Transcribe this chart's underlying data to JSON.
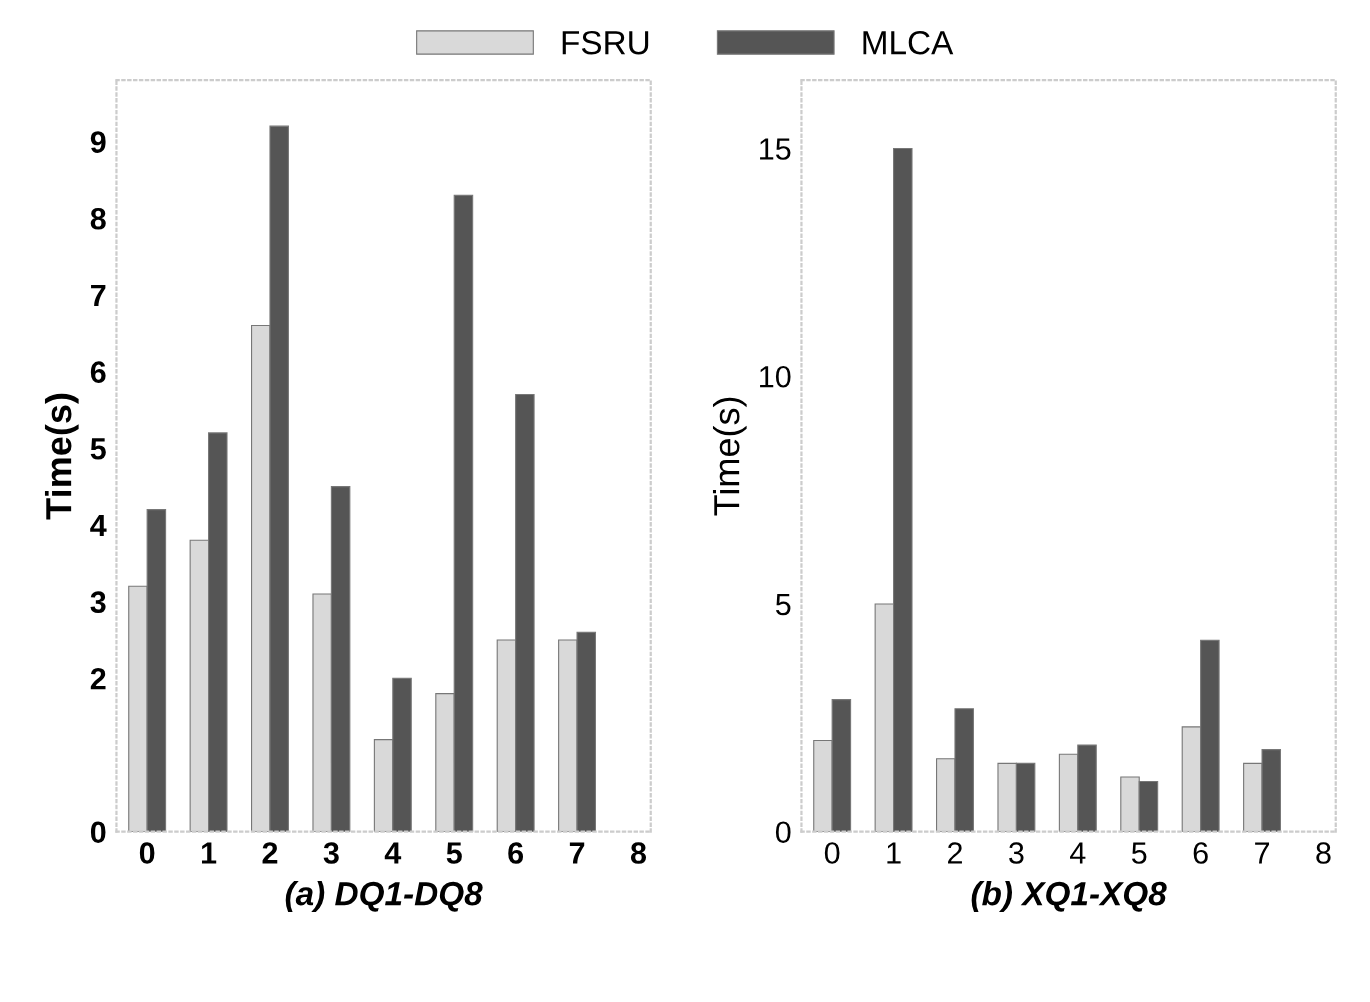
{
  "chart_data": [
    {
      "type": "bar",
      "xlabel": "(a) DQ1-DQ8",
      "ylabel": "Time(s)",
      "x": [
        0,
        1,
        2,
        3,
        4,
        5,
        6,
        7
      ],
      "xlim": [
        -0.5,
        8.2
      ],
      "xticks": [
        0,
        1,
        2,
        3,
        4,
        5,
        6,
        7,
        8
      ],
      "ylim": [
        0,
        9.8
      ],
      "yticks": [
        0,
        2,
        3,
        4,
        5,
        6,
        7,
        8,
        9
      ],
      "legend": "top",
      "grid": false,
      "series": [
        {
          "name": "FSRU",
          "color": "#d9d9d9",
          "values": [
            3.2,
            3.8,
            6.6,
            3.1,
            1.2,
            1.8,
            2.5,
            2.5
          ]
        },
        {
          "name": "MLCA",
          "color": "#555555",
          "values": [
            4.2,
            5.2,
            9.2,
            4.5,
            2.0,
            8.3,
            5.7,
            2.6
          ]
        }
      ]
    },
    {
      "type": "bar",
      "xlabel": "(b) XQ1-XQ8",
      "ylabel": "Time(s)",
      "x": [
        0,
        1,
        2,
        3,
        4,
        5,
        6,
        7
      ],
      "xlim": [
        -0.5,
        8.2
      ],
      "xticks": [
        0,
        1,
        2,
        3,
        4,
        5,
        6,
        7,
        8
      ],
      "ylim": [
        0,
        16.5
      ],
      "yticks": [
        0,
        5,
        10,
        15
      ],
      "grid": false,
      "series": [
        {
          "color": "#d9d9d9",
          "values": [
            2.0,
            5.0,
            1.6,
            1.5,
            1.7,
            1.2,
            2.3,
            1.5
          ]
        },
        {
          "color": "#555555",
          "values": [
            2.9,
            15.0,
            2.7,
            1.5,
            1.9,
            1.1,
            4.2,
            1.8
          ]
        }
      ]
    }
  ]
}
